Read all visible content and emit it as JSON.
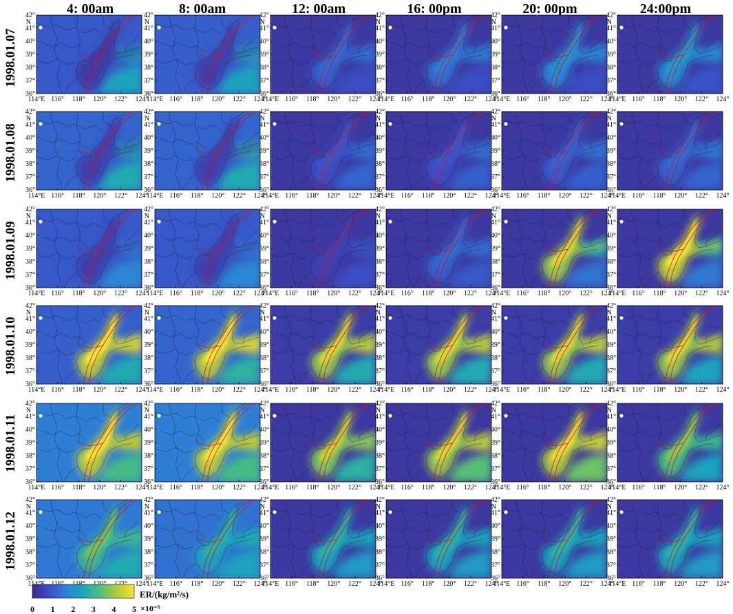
{
  "columns": [
    "4: 00am",
    "8: 00am",
    "12: 00am",
    "16: 00pm",
    "20: 00pm",
    "24:00pm"
  ],
  "rows": [
    "1998.01.07",
    "1998.01.08",
    "1998.01.09",
    "1998.01.10",
    "1998.01.11",
    "1998.01.12"
  ],
  "lon_ticks": [
    "114°E",
    "116°",
    "118°",
    "120°",
    "122°",
    "124°"
  ],
  "lat_ticks": [
    "42°",
    "41°",
    "40°",
    "39°",
    "38°",
    "37°",
    "36°"
  ],
  "lat_unit": "N",
  "colorbar": {
    "label": "ER/(kg/m²/s)",
    "ticks": [
      "0",
      "1",
      "2",
      "3",
      "4",
      "5"
    ],
    "multiplier": "×10⁻⁵",
    "range": [
      0,
      5
    ],
    "colors": [
      "#3e2b8a",
      "#3a4fc6",
      "#2d82d6",
      "#1aa8b8",
      "#4fbf7a",
      "#b6c83a",
      "#f7e23a"
    ]
  },
  "colors": {
    "boundary": "#1a1a1a",
    "fault": "#c8102e",
    "marker": "#ffffff"
  },
  "panels": [
    [
      {
        "bg": 1.0,
        "bay": 0.4,
        "ocean": 2.4,
        "east": 2.4
      },
      {
        "bg": 1.1,
        "bay": 0.5,
        "ocean": 2.4,
        "east": 2.6
      },
      {
        "bg": 0.3,
        "bay": 1.3,
        "ocean": 0.8,
        "east": 1.4
      },
      {
        "bg": 0.3,
        "bay": 1.6,
        "ocean": 0.8,
        "east": 1.6
      },
      {
        "bg": 0.3,
        "bay": 2.0,
        "ocean": 0.8,
        "east": 1.7
      },
      {
        "bg": 0.3,
        "bay": 2.2,
        "ocean": 0.9,
        "east": 1.8
      }
    ],
    [
      {
        "bg": 1.2,
        "bay": 0.5,
        "ocean": 2.6,
        "east": 2.6
      },
      {
        "bg": 1.2,
        "bay": 0.5,
        "ocean": 2.6,
        "east": 2.8
      },
      {
        "bg": 0.3,
        "bay": 1.0,
        "ocean": 1.2,
        "east": 1.6
      },
      {
        "bg": 0.3,
        "bay": 1.0,
        "ocean": 1.1,
        "east": 1.6
      },
      {
        "bg": 0.3,
        "bay": 1.2,
        "ocean": 1.1,
        "east": 1.6
      },
      {
        "bg": 0.3,
        "bay": 1.3,
        "ocean": 1.2,
        "east": 1.7
      }
    ],
    [
      {
        "bg": 1.0,
        "bay": 0.5,
        "ocean": 1.8,
        "east": 1.6
      },
      {
        "bg": 1.0,
        "bay": 0.5,
        "ocean": 1.8,
        "east": 1.6
      },
      {
        "bg": 0.3,
        "bay": 0.6,
        "ocean": 0.8,
        "east": 1.0
      },
      {
        "bg": 0.3,
        "bay": 1.3,
        "ocean": 1.0,
        "east": 1.4
      },
      {
        "bg": 0.3,
        "bay": 4.6,
        "ocean": 1.4,
        "east": 2.6
      },
      {
        "bg": 0.3,
        "bay": 5.0,
        "ocean": 1.5,
        "east": 2.8
      }
    ],
    [
      {
        "bg": 1.1,
        "bay": 5.0,
        "ocean": 2.6,
        "east": 4.6
      },
      {
        "bg": 1.2,
        "bay": 5.0,
        "ocean": 2.8,
        "east": 4.8
      },
      {
        "bg": 0.4,
        "bay": 4.6,
        "ocean": 2.6,
        "east": 4.4
      },
      {
        "bg": 0.4,
        "bay": 4.6,
        "ocean": 2.6,
        "east": 4.4
      },
      {
        "bg": 0.4,
        "bay": 4.6,
        "ocean": 2.6,
        "east": 4.4
      },
      {
        "bg": 0.4,
        "bay": 4.6,
        "ocean": 2.4,
        "east": 4.2
      }
    ],
    [
      {
        "bg": 1.6,
        "bay": 5.0,
        "ocean": 3.2,
        "east": 4.2
      },
      {
        "bg": 1.6,
        "bay": 5.0,
        "ocean": 3.2,
        "east": 4.2
      },
      {
        "bg": 0.3,
        "bay": 4.4,
        "ocean": 2.8,
        "east": 3.8
      },
      {
        "bg": 0.3,
        "bay": 4.6,
        "ocean": 3.4,
        "east": 4.4
      },
      {
        "bg": 0.3,
        "bay": 4.8,
        "ocean": 3.6,
        "east": 4.6
      },
      {
        "bg": 0.3,
        "bay": 3.8,
        "ocean": 2.4,
        "east": 2.8
      }
    ],
    [
      {
        "bg": 1.5,
        "bay": 3.6,
        "ocean": 2.6,
        "east": 3.0
      },
      {
        "bg": 1.4,
        "bay": 2.8,
        "ocean": 2.4,
        "east": 2.6
      },
      {
        "bg": 0.3,
        "bay": 2.8,
        "ocean": 2.2,
        "east": 2.4
      },
      {
        "bg": 0.3,
        "bay": 2.8,
        "ocean": 2.2,
        "east": 2.4
      },
      {
        "bg": 0.3,
        "bay": 2.8,
        "ocean": 2.2,
        "east": 2.4
      },
      {
        "bg": 0.3,
        "bay": 2.8,
        "ocean": 2.2,
        "east": 2.4
      }
    ]
  ]
}
